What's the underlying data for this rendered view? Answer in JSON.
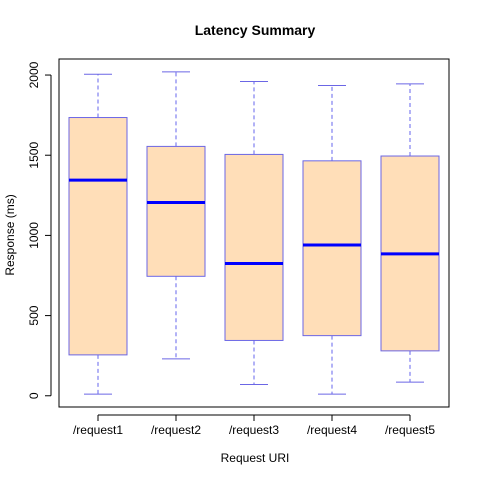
{
  "chart_data": {
    "type": "boxplot",
    "title": "Latency Summary",
    "xlabel": "Request URI",
    "ylabel": "Response (ms)",
    "categories": [
      "/request1",
      "/request2",
      "/request3",
      "/request4",
      "/request5"
    ],
    "boxes": [
      {
        "category": "/request1",
        "min": 10,
        "q1": 255,
        "median": 1345,
        "q3": 1735,
        "max": 2005
      },
      {
        "category": "/request2",
        "min": 230,
        "q1": 745,
        "median": 1205,
        "q3": 1555,
        "max": 2020
      },
      {
        "category": "/request3",
        "min": 70,
        "q1": 345,
        "median": 825,
        "q3": 1505,
        "max": 1960
      },
      {
        "category": "/request4",
        "min": 10,
        "q1": 375,
        "median": 940,
        "q3": 1465,
        "max": 1935
      },
      {
        "category": "/request5",
        "min": 85,
        "q1": 280,
        "median": 885,
        "q3": 1495,
        "max": 1945
      }
    ],
    "y_ticks": [
      0,
      500,
      1000,
      1500,
      2000
    ],
    "ylim": [
      -70,
      2100
    ],
    "grid": false,
    "legend": "none",
    "colors": {
      "box_fill": "#FFDEB8",
      "box_border": "#6B66E5",
      "median": "#0000FF",
      "whisker": "#6666EE",
      "axis": "#000000"
    }
  }
}
